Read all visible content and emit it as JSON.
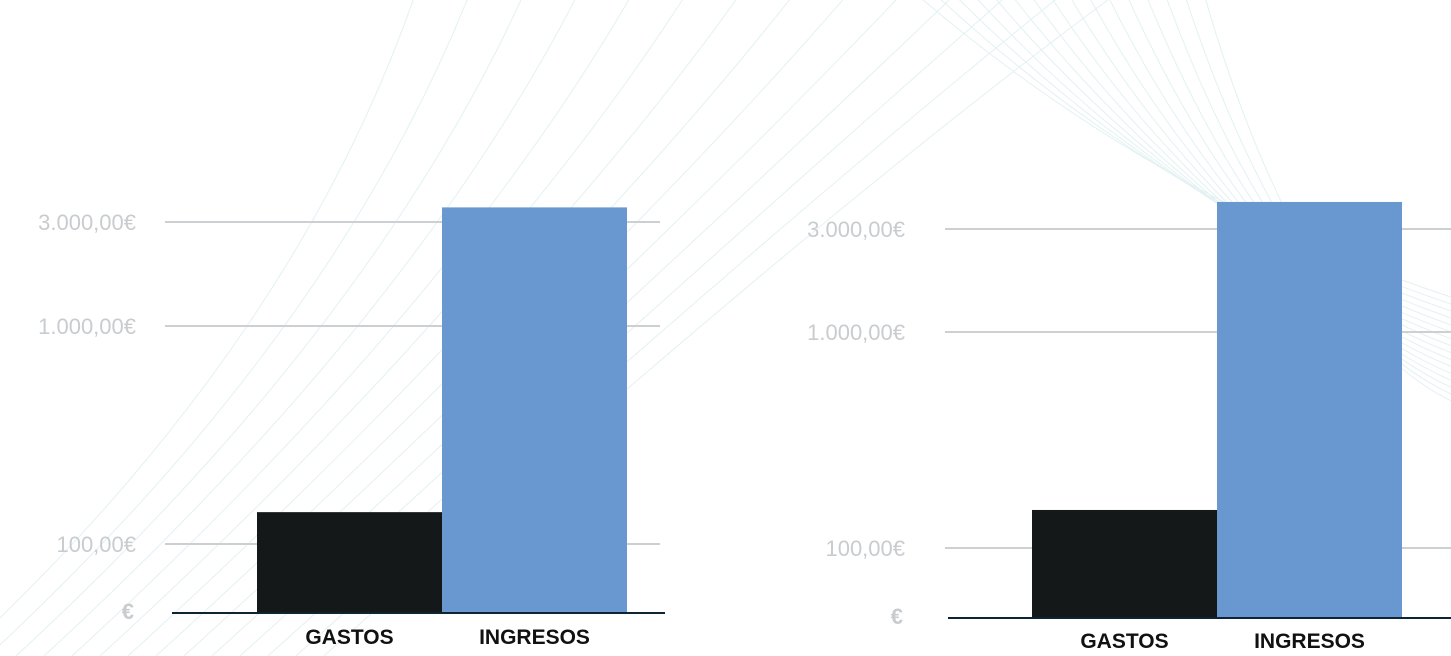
{
  "chart_data": [
    {
      "type": "bar",
      "scale": "log",
      "categories": [
        "GASTOS",
        "INGRESOS"
      ],
      "values": [
        140,
        3500
      ],
      "colors": [
        "#141819",
        "#6998d0"
      ],
      "yticks": [
        100,
        1000,
        3000
      ],
      "ytick_labels": [
        "100,00€",
        "1.000,00€",
        "3.000,00€"
      ],
      "axis_symbol": "€",
      "grid": true
    },
    {
      "type": "bar",
      "scale": "log",
      "categories": [
        "GASTOS",
        "INGRESOS"
      ],
      "values": [
        150,
        4000
      ],
      "colors": [
        "#141819",
        "#6998d0"
      ],
      "yticks": [
        100,
        1000,
        3000
      ],
      "ytick_labels": [
        "100,00€",
        "1.000,00€",
        "3.000,00€"
      ],
      "axis_symbol": "€",
      "grid": true
    }
  ],
  "style": {
    "grid_color": "#cdd0d3",
    "baseline_color": "#0d2433",
    "background_line_color": "#e3f1f2"
  }
}
